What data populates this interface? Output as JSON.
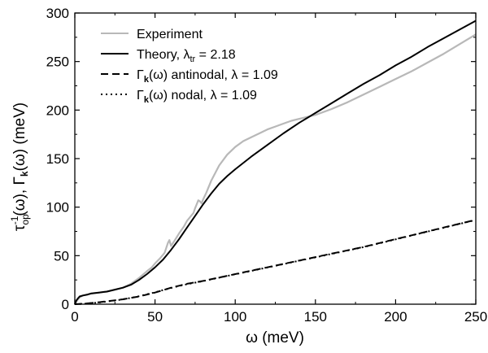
{
  "chart_data": {
    "type": "line",
    "title": "",
    "xlabel": "ω (meV)",
    "ylabel_parts": [
      "τ",
      "op",
      "-1",
      "(ω), Γ",
      "k",
      "(ω) (meV)"
    ],
    "xlim": [
      0,
      250
    ],
    "ylim": [
      0,
      300
    ],
    "x_ticks": [
      0,
      50,
      100,
      150,
      200,
      250
    ],
    "y_ticks": [
      0,
      50,
      100,
      150,
      200,
      250,
      300
    ],
    "grid": false,
    "legend_position": "top-left",
    "series": [
      {
        "name": "Experiment",
        "legend_parts": [
          "Experiment"
        ],
        "style": "solid",
        "color": "#b8b8b8",
        "x": [
          0,
          1,
          3,
          5,
          8,
          10,
          15,
          20,
          25,
          30,
          35,
          40,
          45,
          48,
          50,
          53,
          56,
          57,
          58,
          59,
          60,
          62,
          65,
          68,
          70,
          72,
          74,
          75,
          76,
          77,
          78,
          79,
          80,
          82,
          85,
          90,
          95,
          100,
          105,
          110,
          115,
          120,
          125,
          130,
          135,
          140,
          145,
          150,
          160,
          170,
          180,
          190,
          200,
          210,
          220,
          230,
          240,
          250
        ],
        "y": [
          0,
          3,
          7,
          9,
          10,
          11,
          12,
          13,
          15,
          17,
          21,
          27,
          34,
          38,
          42,
          47,
          53,
          58,
          63,
          66,
          60,
          65,
          73,
          80,
          86,
          90,
          94,
          99,
          103,
          107,
          106,
          104,
          108,
          115,
          127,
          143,
          154,
          162,
          168,
          172,
          176,
          180,
          183,
          186,
          189,
          191,
          193,
          195,
          201,
          208,
          216,
          224,
          232,
          240,
          249,
          258,
          268,
          278
        ]
      },
      {
        "name": "Theory, λtr = 2.18",
        "legend_parts": [
          "Theory, λ",
          "tr",
          " = 2.18"
        ],
        "style": "solid",
        "color": "#000000",
        "x": [
          0,
          1,
          2,
          3,
          5,
          8,
          10,
          15,
          20,
          25,
          30,
          35,
          40,
          45,
          50,
          55,
          60,
          65,
          70,
          75,
          80,
          85,
          90,
          95,
          100,
          110,
          120,
          130,
          140,
          150,
          160,
          170,
          180,
          190,
          200,
          210,
          220,
          230,
          240,
          250
        ],
        "y": [
          0,
          4,
          6,
          8,
          9,
          10,
          11,
          12,
          13,
          15,
          17,
          20,
          25,
          31,
          38,
          46,
          56,
          67,
          79,
          91,
          103,
          114,
          124,
          132,
          139,
          152,
          164,
          176,
          187,
          197,
          207,
          217,
          227,
          236,
          246,
          255,
          265,
          274,
          283,
          292
        ]
      },
      {
        "name": "Γk(ω) antinodal, λ = 1.09",
        "legend_parts": [
          "Γ",
          "k",
          "(ω) antinodal, λ = 1.09"
        ],
        "style": "dashed",
        "color": "#000000",
        "x": [
          0,
          5,
          10,
          15,
          20,
          25,
          30,
          35,
          40,
          45,
          50,
          55,
          60,
          65,
          70,
          80,
          90,
          100,
          110,
          120,
          130,
          140,
          150,
          160,
          170,
          180,
          190,
          200,
          210,
          220,
          230,
          240,
          250
        ],
        "y": [
          0,
          0.5,
          1.2,
          2,
          3,
          4,
          5,
          6.5,
          8,
          10,
          12,
          14.5,
          17,
          19,
          21,
          24,
          27.5,
          31,
          34.5,
          38,
          41.5,
          45,
          48.5,
          52,
          55.5,
          59,
          63,
          67,
          71,
          75,
          79,
          83,
          87
        ]
      },
      {
        "name": "Γk(ω) nodal, λ = 1.09",
        "legend_parts": [
          "Γ",
          "k",
          "(ω) nodal, λ = 1.09"
        ],
        "style": "dotted",
        "color": "#000000",
        "x": [
          0,
          5,
          10,
          15,
          20,
          25,
          30,
          35,
          40,
          45,
          50,
          55,
          60,
          65,
          70,
          80,
          90,
          100,
          110,
          120,
          130,
          140,
          150,
          160,
          170,
          180,
          190,
          200,
          210,
          220,
          230,
          240,
          250
        ],
        "y": [
          0,
          0.4,
          1,
          1.8,
          2.8,
          3.8,
          5,
          6.5,
          8.2,
          10.2,
          12.2,
          14.6,
          16.8,
          18.8,
          20.6,
          23.8,
          27.3,
          30.8,
          34.3,
          37.8,
          41.3,
          44.8,
          48.3,
          51.8,
          55.3,
          58.8,
          62.8,
          66.8,
          70.8,
          74.8,
          78.8,
          82.8,
          86.8
        ]
      }
    ]
  }
}
